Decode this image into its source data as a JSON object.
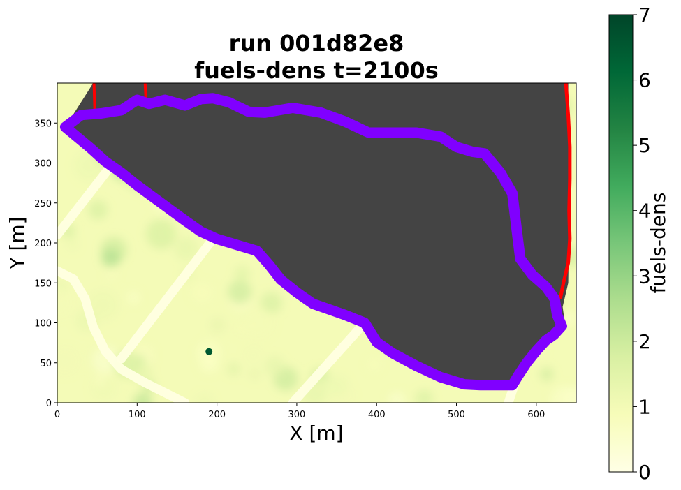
{
  "chart_data": {
    "type": "heatmap",
    "title_lines": [
      "run 001d82e8",
      "fuels-dens t=2100s"
    ],
    "xlabel": "X [m]",
    "ylabel": "Y [m]",
    "xlim": [
      0,
      650
    ],
    "ylim": [
      0,
      400
    ],
    "xticks": [
      0,
      100,
      200,
      300,
      400,
      500,
      600
    ],
    "yticks": [
      0,
      50,
      100,
      150,
      200,
      250,
      300,
      350
    ],
    "colorbar": {
      "label": "fuels-dens",
      "range": [
        0,
        7
      ],
      "ticks": [
        0,
        1,
        2,
        3,
        4,
        5,
        6,
        7
      ],
      "colormap": "YlGn",
      "stops": [
        "#ffffe5",
        "#f7fcb9",
        "#d9f0a3",
        "#addd8e",
        "#78c679",
        "#41ab5d",
        "#238443",
        "#006837",
        "#004529"
      ]
    },
    "background_value_range": [
      0.5,
      2
    ],
    "burned_region_color": "#444444",
    "fire_front_color": "#ff0000",
    "perimeter_color": "#8000ff",
    "fire_perimeter": [
      [
        10,
        345
      ],
      [
        30,
        360
      ],
      [
        55,
        362
      ],
      [
        80,
        366
      ],
      [
        100,
        379
      ],
      [
        115,
        374
      ],
      [
        135,
        379
      ],
      [
        160,
        372
      ],
      [
        180,
        380
      ],
      [
        195,
        381
      ],
      [
        215,
        376
      ],
      [
        240,
        364
      ],
      [
        260,
        363
      ],
      [
        295,
        369
      ],
      [
        330,
        363
      ],
      [
        360,
        352
      ],
      [
        390,
        338
      ],
      [
        420,
        338
      ],
      [
        450,
        338
      ],
      [
        480,
        333
      ],
      [
        500,
        320
      ],
      [
        520,
        314
      ],
      [
        535,
        312
      ],
      [
        555,
        288
      ],
      [
        570,
        262
      ],
      [
        575,
        220
      ],
      [
        580,
        180
      ],
      [
        595,
        160
      ],
      [
        612,
        145
      ],
      [
        623,
        130
      ],
      [
        626,
        110
      ],
      [
        632,
        96
      ],
      [
        622,
        85
      ],
      [
        612,
        78
      ],
      [
        600,
        65
      ],
      [
        588,
        50
      ],
      [
        578,
        35
      ],
      [
        570,
        22
      ],
      [
        560,
        22
      ],
      [
        530,
        22
      ],
      [
        510,
        23
      ],
      [
        480,
        32
      ],
      [
        450,
        46
      ],
      [
        420,
        62
      ],
      [
        400,
        76
      ],
      [
        385,
        100
      ],
      [
        360,
        110
      ],
      [
        320,
        124
      ],
      [
        300,
        138
      ],
      [
        280,
        154
      ],
      [
        265,
        173
      ],
      [
        250,
        190
      ],
      [
        230,
        196
      ],
      [
        200,
        205
      ],
      [
        180,
        214
      ],
      [
        160,
        228
      ],
      [
        130,
        250
      ],
      [
        100,
        272
      ],
      [
        80,
        288
      ],
      [
        60,
        302
      ],
      [
        40,
        320
      ],
      [
        10,
        345
      ]
    ],
    "burned_region": [
      [
        45,
        400
      ],
      [
        805,
        400
      ],
      [
        805,
        320
      ],
      [
        808,
        230
      ],
      [
        805,
        150
      ],
      [
        800,
        120
      ],
      [
        810,
        95
      ],
      [
        800,
        80
      ]
    ],
    "fire_front_segments": [
      {
        "from": [
          635,
          400
        ],
        "to": [
          640,
          145
        ]
      },
      {
        "from": [
          46,
          400
        ],
        "to": [
          47,
          358
        ]
      },
      {
        "from": [
          108,
          400
        ],
        "to": [
          110,
          378
        ]
      }
    ],
    "roads": [
      {
        "points": [
          [
            0,
            165
          ],
          [
            20,
            155
          ],
          [
            35,
            130
          ],
          [
            45,
            95
          ],
          [
            60,
            65
          ],
          [
            80,
            42
          ],
          [
            110,
            25
          ],
          [
            140,
            10
          ],
          [
            160,
            0
          ]
        ]
      },
      {
        "points": [
          [
            0,
            210
          ],
          [
            70,
            300
          ]
        ]
      },
      {
        "points": [
          [
            80,
            55
          ],
          [
            195,
            205
          ]
        ]
      },
      {
        "points": [
          [
            295,
            0
          ],
          [
            385,
            100
          ]
        ]
      },
      {
        "points": [
          [
            565,
            0
          ],
          [
            575,
            30
          ]
        ]
      }
    ],
    "hotspots": [
      {
        "x": 190,
        "y": 64,
        "value": 6.5
      }
    ]
  }
}
